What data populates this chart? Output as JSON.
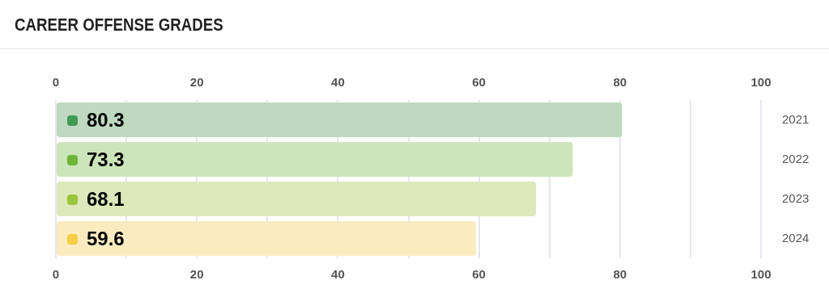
{
  "chart_data": {
    "type": "bar",
    "orientation": "horizontal",
    "title": "CAREER OFFENSE GRADES",
    "categories": [
      "2021",
      "2022",
      "2023",
      "2024"
    ],
    "values": [
      80.3,
      73.3,
      68.1,
      59.6
    ],
    "colors": [
      "#bed9bf",
      "#cde5bb",
      "#dde8bb",
      "#fbecc0"
    ],
    "data_labels": true,
    "grid": "x",
    "legend": false,
    "xlim": [
      0,
      100
    ],
    "xticks": [
      0,
      {
        "value": 10,
        "label": null
      },
      20,
      {
        "value": 30,
        "label": null
      },
      40,
      {
        "value": 50,
        "label": null
      },
      60,
      {
        "value": 70,
        "label": null
      },
      80,
      {
        "value": 90,
        "label": null
      },
      100
    ],
    "x2lim": [
      0,
      100
    ],
    "x2ticks": [
      0,
      20,
      40,
      60,
      80,
      100
    ]
  }
}
